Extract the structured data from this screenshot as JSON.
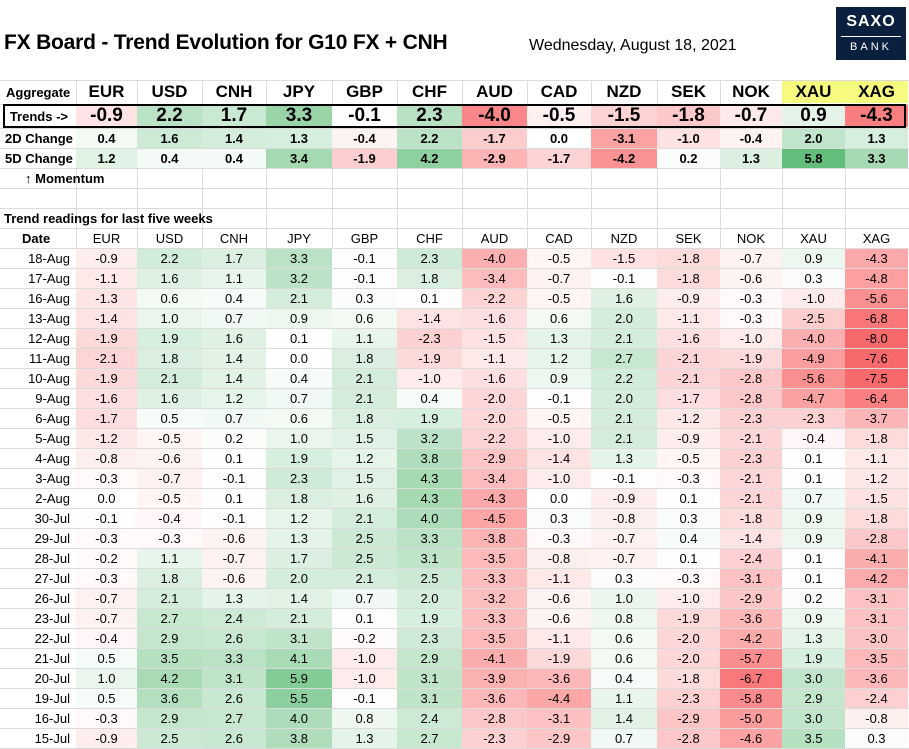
{
  "title": "FX Board - Trend Evolution for G10 FX + CNH",
  "date_label": "Wednesday, August 18, 2021",
  "logo": {
    "line1": "SAXO",
    "line2": "BANK"
  },
  "aggregate_label": "Aggregate",
  "currencies": [
    "EUR",
    "USD",
    "CNH",
    "JPY",
    "GBP",
    "CHF",
    "AUD",
    "CAD",
    "NZD",
    "SEK",
    "NOK",
    "XAU",
    "XAG"
  ],
  "summary_rows": [
    {
      "label": "Trends ->",
      "values": [
        -0.9,
        2.2,
        1.7,
        3.3,
        -0.1,
        2.3,
        -4.0,
        -0.5,
        -1.5,
        -1.8,
        -0.7,
        0.9,
        -4.3
      ]
    },
    {
      "label": "2D Change",
      "values": [
        0.4,
        1.6,
        1.4,
        1.3,
        -0.4,
        2.2,
        -1.7,
        0.0,
        -3.1,
        -1.0,
        -0.4,
        2.0,
        1.3
      ]
    },
    {
      "label": "5D Change",
      "values": [
        1.2,
        0.4,
        0.4,
        3.4,
        -1.9,
        4.2,
        -2.9,
        -1.7,
        -4.2,
        0.2,
        1.3,
        5.8,
        3.3
      ]
    }
  ],
  "momentum_label": "↑ Momentum",
  "section_label": "Trend readings for last five weeks",
  "date_header": "Date",
  "colors": {
    "highlight": "#f6fb7f",
    "positive": "#63be7b",
    "negative": "#f8696b",
    "neutral": "#ffffff"
  },
  "chart_data": {
    "type": "heatmap",
    "title": "FX Board - Trend Evolution for G10 FX + CNH",
    "columns": [
      "EUR",
      "USD",
      "CNH",
      "JPY",
      "GBP",
      "CHF",
      "AUD",
      "CAD",
      "NZD",
      "SEK",
      "NOK",
      "XAU",
      "XAG"
    ],
    "rows": [
      {
        "date": "18-Aug",
        "values": [
          -0.9,
          2.2,
          1.7,
          3.3,
          -0.1,
          2.3,
          -4.0,
          -0.5,
          -1.5,
          -1.8,
          -0.7,
          0.9,
          -4.3
        ]
      },
      {
        "date": "17-Aug",
        "values": [
          -1.1,
          1.6,
          1.1,
          3.2,
          -0.1,
          1.8,
          -3.4,
          -0.7,
          -0.1,
          -1.8,
          -0.6,
          0.3,
          -4.8
        ]
      },
      {
        "date": "16-Aug",
        "values": [
          -1.3,
          0.6,
          0.4,
          2.1,
          0.3,
          0.1,
          -2.2,
          -0.5,
          1.6,
          -0.9,
          -0.3,
          -1.0,
          -5.6
        ]
      },
      {
        "date": "13-Aug",
        "values": [
          -1.4,
          1.0,
          0.7,
          0.9,
          0.6,
          -1.4,
          -1.6,
          0.6,
          2.0,
          -1.1,
          -0.3,
          -2.5,
          -6.8
        ]
      },
      {
        "date": "12-Aug",
        "values": [
          -1.9,
          1.9,
          1.6,
          0.1,
          1.1,
          -2.3,
          -1.5,
          1.3,
          2.1,
          -1.6,
          -1.0,
          -4.0,
          -8.0
        ]
      },
      {
        "date": "11-Aug",
        "values": [
          -2.1,
          1.8,
          1.4,
          0.0,
          1.8,
          -1.9,
          -1.1,
          1.2,
          2.7,
          -2.1,
          -1.9,
          -4.9,
          -7.6
        ]
      },
      {
        "date": "10-Aug",
        "values": [
          -1.9,
          2.1,
          1.4,
          0.4,
          2.1,
          -1.0,
          -1.6,
          0.9,
          2.2,
          -2.1,
          -2.8,
          -5.6,
          -7.5
        ]
      },
      {
        "date": "9-Aug",
        "values": [
          -1.6,
          1.6,
          1.2,
          0.7,
          2.1,
          0.4,
          -2.0,
          -0.1,
          2.0,
          -1.7,
          -2.8,
          -4.7,
          -6.4
        ]
      },
      {
        "date": "6-Aug",
        "values": [
          -1.7,
          0.5,
          0.7,
          0.6,
          1.8,
          1.9,
          -2.0,
          -0.5,
          2.1,
          -1.2,
          -2.3,
          -2.3,
          -3.7
        ]
      },
      {
        "date": "5-Aug",
        "values": [
          -1.2,
          -0.5,
          0.2,
          1.0,
          1.5,
          3.2,
          -2.2,
          -1.0,
          2.1,
          -0.9,
          -2.1,
          -0.4,
          -1.8
        ]
      },
      {
        "date": "4-Aug",
        "values": [
          -0.8,
          -0.6,
          0.1,
          1.9,
          1.2,
          3.8,
          -2.9,
          -1.4,
          1.3,
          -0.5,
          -2.3,
          0.1,
          -1.1
        ]
      },
      {
        "date": "3-Aug",
        "values": [
          -0.3,
          -0.7,
          -0.1,
          2.3,
          1.5,
          4.3,
          -3.4,
          -1.0,
          -0.1,
          -0.3,
          -2.1,
          0.1,
          -1.2
        ]
      },
      {
        "date": "2-Aug",
        "values": [
          0.0,
          -0.5,
          0.1,
          1.8,
          1.6,
          4.3,
          -4.3,
          0.0,
          -0.9,
          0.1,
          -2.1,
          0.7,
          -1.5
        ]
      },
      {
        "date": "30-Jul",
        "values": [
          -0.1,
          -0.4,
          -0.1,
          1.2,
          2.1,
          4.0,
          -4.5,
          0.3,
          -0.8,
          0.3,
          -1.8,
          0.9,
          -1.8
        ]
      },
      {
        "date": "29-Jul",
        "values": [
          -0.3,
          -0.3,
          -0.6,
          1.3,
          2.5,
          3.3,
          -3.8,
          -0.3,
          -0.7,
          0.4,
          -1.4,
          0.9,
          -2.8
        ]
      },
      {
        "date": "28-Jul",
        "values": [
          -0.2,
          1.1,
          -0.7,
          1.7,
          2.5,
          3.1,
          -3.5,
          -0.8,
          -0.7,
          0.1,
          -2.4,
          0.1,
          -4.1
        ]
      },
      {
        "date": "27-Jul",
        "values": [
          -0.3,
          1.8,
          -0.6,
          2.0,
          2.1,
          2.5,
          -3.3,
          -1.1,
          0.3,
          -0.3,
          -3.1,
          0.1,
          -4.2
        ]
      },
      {
        "date": "26-Jul",
        "values": [
          -0.7,
          2.1,
          1.3,
          1.4,
          0.7,
          2.0,
          -3.2,
          -0.6,
          1.0,
          -1.0,
          -2.9,
          0.2,
          -3.1
        ]
      },
      {
        "date": "23-Jul",
        "values": [
          -0.7,
          2.7,
          2.4,
          2.1,
          0.1,
          1.9,
          -3.3,
          -0.6,
          0.8,
          -1.9,
          -3.6,
          0.9,
          -3.1
        ]
      },
      {
        "date": "22-Jul",
        "values": [
          -0.4,
          2.9,
          2.6,
          3.1,
          -0.2,
          2.3,
          -3.5,
          -1.1,
          0.6,
          -2.0,
          -4.2,
          1.3,
          -3.0
        ]
      },
      {
        "date": "21-Jul",
        "values": [
          0.5,
          3.5,
          3.3,
          4.1,
          -1.0,
          2.9,
          -4.1,
          -1.9,
          0.6,
          -2.0,
          -5.7,
          1.9,
          -3.5
        ]
      },
      {
        "date": "20-Jul",
        "values": [
          1.0,
          4.2,
          3.1,
          5.9,
          -1.0,
          3.1,
          -3.9,
          -3.6,
          0.4,
          -1.8,
          -6.7,
          3.0,
          -3.6
        ]
      },
      {
        "date": "19-Jul",
        "values": [
          0.5,
          3.6,
          2.6,
          5.5,
          -0.1,
          3.1,
          -3.6,
          -4.4,
          1.1,
          -2.3,
          -5.8,
          2.9,
          -2.4
        ]
      },
      {
        "date": "16-Jul",
        "values": [
          -0.3,
          2.9,
          2.7,
          4.0,
          0.8,
          2.4,
          -2.8,
          -3.1,
          1.4,
          -2.9,
          -5.0,
          3.0,
          -0.8
        ]
      },
      {
        "date": "15-Jul",
        "values": [
          -0.9,
          2.5,
          2.6,
          3.8,
          1.3,
          2.7,
          -2.3,
          -2.9,
          0.7,
          -2.8,
          -4.6,
          3.5,
          0.3
        ]
      }
    ]
  }
}
